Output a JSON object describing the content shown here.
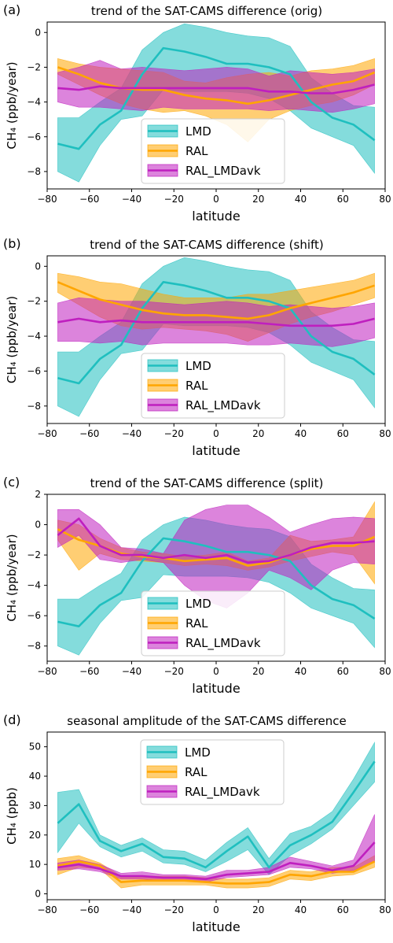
{
  "colors": {
    "LMD": "#1fbfbf",
    "RAL": "#ffa500",
    "RAL_LMDavk": "#bf1fbf"
  },
  "chart_data": [
    {
      "id": "a",
      "panel_label": "(a)",
      "type": "line",
      "title": "trend of the SAT-CAMS difference (orig)",
      "xlabel": "latitude",
      "ylabel": "CH₄ (ppb/year)",
      "xlim": [
        -80,
        80
      ],
      "ylim": [
        -9,
        0.6
      ],
      "xticks": [
        -80,
        -60,
        -40,
        -20,
        0,
        20,
        40,
        60,
        80
      ],
      "yticks": [
        0,
        -2,
        -4,
        -6,
        -8
      ],
      "legend": {
        "position": "bottom-center",
        "entries": [
          "LMD",
          "RAL",
          "RAL_LMDavk"
        ]
      },
      "x": [
        -75,
        -65,
        -55,
        -45,
        -35,
        -25,
        -15,
        -5,
        5,
        15,
        25,
        35,
        45,
        55,
        65,
        75
      ],
      "series": [
        {
          "name": "LMD",
          "values": [
            -6.4,
            -6.7,
            -5.3,
            -4.5,
            -2.4,
            -0.9,
            -1.1,
            -1.4,
            -1.8,
            -1.8,
            -2.0,
            -2.4,
            -4.0,
            -4.9,
            -5.3,
            -6.2
          ],
          "lower": [
            -8.0,
            -8.6,
            -6.5,
            -5.0,
            -4.8,
            -3.3,
            -3.4,
            -3.4,
            -3.4,
            -3.5,
            -3.8,
            -4.5,
            -5.5,
            -6.0,
            -6.5,
            -8.1
          ],
          "upper": [
            -4.9,
            -4.9,
            -4.0,
            -3.2,
            -1.0,
            0.0,
            0.5,
            0.3,
            0.0,
            -0.2,
            -0.3,
            -0.8,
            -2.6,
            -3.5,
            -4.2,
            -4.3
          ]
        },
        {
          "name": "RAL",
          "values": [
            -2.0,
            -2.4,
            -2.9,
            -3.2,
            -3.3,
            -3.3,
            -3.6,
            -3.8,
            -3.9,
            -4.1,
            -3.9,
            -3.6,
            -3.3,
            -3.0,
            -2.8,
            -2.3
          ],
          "lower": [
            -2.4,
            -3.0,
            -3.6,
            -4.1,
            -4.4,
            -4.6,
            -4.5,
            -4.8,
            -5.3,
            -6.3,
            -5.0,
            -4.5,
            -4.2,
            -4.0,
            -3.6,
            -3.0
          ],
          "upper": [
            -1.5,
            -1.8,
            -2.0,
            -2.1,
            -2.2,
            -2.3,
            -2.8,
            -2.9,
            -2.6,
            -2.4,
            -2.3,
            -2.5,
            -2.2,
            -2.1,
            -1.9,
            -1.5
          ]
        },
        {
          "name": "RAL_LMDavk",
          "values": [
            -3.2,
            -3.3,
            -3.1,
            -3.2,
            -3.2,
            -3.2,
            -3.2,
            -3.2,
            -3.2,
            -3.2,
            -3.4,
            -3.4,
            -3.5,
            -3.5,
            -3.3,
            -3.0
          ],
          "lower": [
            -4.0,
            -4.3,
            -4.3,
            -4.4,
            -4.5,
            -4.3,
            -4.4,
            -4.4,
            -4.4,
            -4.4,
            -4.5,
            -4.4,
            -4.5,
            -4.6,
            -4.4,
            -4.1
          ],
          "upper": [
            -2.3,
            -2.0,
            -1.6,
            -2.1,
            -2.0,
            -2.1,
            -2.2,
            -2.1,
            -2.0,
            -2.1,
            -2.5,
            -2.2,
            -2.3,
            -2.4,
            -2.3,
            -2.1
          ]
        }
      ]
    },
    {
      "id": "b",
      "panel_label": "(b)",
      "type": "line",
      "title": "trend of the SAT-CAMS difference (shift)",
      "xlabel": "latitude",
      "ylabel": "CH₄ (ppb/year)",
      "xlim": [
        -80,
        80
      ],
      "ylim": [
        -9,
        0.6
      ],
      "xticks": [
        -80,
        -60,
        -40,
        -20,
        0,
        20,
        40,
        60,
        80
      ],
      "yticks": [
        0,
        -2,
        -4,
        -6,
        -8
      ],
      "legend": {
        "position": "bottom-center",
        "entries": [
          "LMD",
          "RAL",
          "RAL_LMDavk"
        ]
      },
      "x": [
        -75,
        -65,
        -55,
        -45,
        -35,
        -25,
        -15,
        -5,
        5,
        15,
        25,
        35,
        45,
        55,
        65,
        75
      ],
      "series": [
        {
          "name": "LMD",
          "values": [
            -6.4,
            -6.7,
            -5.3,
            -4.5,
            -2.4,
            -0.9,
            -1.1,
            -1.4,
            -1.8,
            -1.8,
            -2.0,
            -2.4,
            -4.0,
            -4.9,
            -5.3,
            -6.2
          ],
          "lower": [
            -8.0,
            -8.6,
            -6.5,
            -5.0,
            -4.8,
            -3.3,
            -3.4,
            -3.4,
            -3.4,
            -3.5,
            -3.8,
            -4.5,
            -5.5,
            -6.0,
            -6.5,
            -8.1
          ],
          "upper": [
            -4.9,
            -4.9,
            -4.0,
            -3.2,
            -1.0,
            0.0,
            0.5,
            0.3,
            0.0,
            -0.2,
            -0.3,
            -0.8,
            -2.6,
            -3.5,
            -4.2,
            -4.3
          ]
        },
        {
          "name": "RAL",
          "values": [
            -0.9,
            -1.4,
            -1.9,
            -2.2,
            -2.5,
            -2.7,
            -2.8,
            -2.8,
            -2.9,
            -3.0,
            -2.8,
            -2.4,
            -2.1,
            -1.8,
            -1.5,
            -1.1
          ],
          "lower": [
            -1.5,
            -2.2,
            -2.9,
            -3.4,
            -3.6,
            -3.5,
            -3.6,
            -3.7,
            -3.9,
            -4.3,
            -3.8,
            -3.3,
            -2.9,
            -2.6,
            -2.2,
            -1.8
          ],
          "upper": [
            -0.4,
            -0.6,
            -0.9,
            -1.0,
            -1.3,
            -1.6,
            -1.8,
            -1.8,
            -1.8,
            -1.6,
            -1.6,
            -1.4,
            -1.2,
            -1.0,
            -0.8,
            -0.4
          ]
        },
        {
          "name": "RAL_LMDavk",
          "values": [
            -3.2,
            -3.0,
            -3.2,
            -3.1,
            -3.2,
            -3.2,
            -3.2,
            -3.2,
            -3.2,
            -3.2,
            -3.3,
            -3.4,
            -3.4,
            -3.4,
            -3.3,
            -3.0
          ],
          "lower": [
            -4.3,
            -4.3,
            -4.4,
            -4.3,
            -4.5,
            -4.4,
            -4.4,
            -4.4,
            -4.4,
            -4.5,
            -4.5,
            -4.4,
            -4.5,
            -4.6,
            -4.4,
            -4.1
          ],
          "upper": [
            -2.1,
            -1.8,
            -1.9,
            -2.0,
            -2.0,
            -2.1,
            -2.2,
            -2.1,
            -2.0,
            -2.1,
            -2.3,
            -2.2,
            -2.3,
            -2.4,
            -2.3,
            -2.1
          ]
        }
      ]
    },
    {
      "id": "c",
      "panel_label": "(c)",
      "type": "line",
      "title": "trend of the SAT-CAMS difference (split)",
      "xlabel": "latitude",
      "ylabel": "CH₄ (ppb/year)",
      "xlim": [
        -80,
        80
      ],
      "ylim": [
        -9,
        2
      ],
      "xticks": [
        -80,
        -60,
        -40,
        -20,
        0,
        20,
        40,
        60,
        80
      ],
      "yticks": [
        2,
        0,
        -2,
        -4,
        -6,
        -8
      ],
      "legend": {
        "position": "bottom-center",
        "entries": [
          "LMD",
          "RAL",
          "RAL_LMDavk"
        ]
      },
      "x": [
        -75,
        -65,
        -55,
        -45,
        -35,
        -25,
        -15,
        -5,
        5,
        15,
        25,
        35,
        45,
        55,
        65,
        75
      ],
      "series": [
        {
          "name": "LMD",
          "values": [
            -6.4,
            -6.7,
            -5.3,
            -4.5,
            -2.4,
            -0.9,
            -1.1,
            -1.4,
            -1.8,
            -1.8,
            -2.0,
            -2.4,
            -4.0,
            -4.9,
            -5.3,
            -6.2
          ],
          "lower": [
            -8.0,
            -8.6,
            -6.5,
            -5.0,
            -4.8,
            -3.3,
            -3.4,
            -3.4,
            -3.4,
            -3.5,
            -3.8,
            -4.5,
            -5.5,
            -6.0,
            -6.5,
            -8.1
          ],
          "upper": [
            -4.9,
            -4.9,
            -4.0,
            -3.2,
            -1.0,
            0.0,
            0.5,
            0.3,
            0.0,
            -0.2,
            -0.3,
            -0.8,
            -2.6,
            -3.5,
            -4.2,
            -4.3
          ]
        },
        {
          "name": "RAL",
          "values": [
            -0.3,
            -1.0,
            -1.4,
            -1.9,
            -2.1,
            -2.2,
            -2.4,
            -2.3,
            -2.2,
            -2.7,
            -2.5,
            -2.0,
            -1.6,
            -1.4,
            -1.4,
            -0.8
          ],
          "lower": [
            -1.0,
            -3.0,
            -1.9,
            -2.3,
            -2.4,
            -2.5,
            -2.7,
            -2.6,
            -2.7,
            -3.0,
            -2.8,
            -2.4,
            -2.1,
            -1.8,
            -2.0,
            -3.9
          ],
          "upper": [
            0.3,
            0.0,
            -0.9,
            -1.5,
            -1.8,
            -1.9,
            -2.1,
            -2.0,
            -1.8,
            -2.4,
            -2.2,
            -0.7,
            -1.1,
            -1.0,
            -0.8,
            1.5
          ]
        },
        {
          "name": "RAL_LMDavk",
          "values": [
            -0.7,
            0.4,
            -1.4,
            -2.0,
            -2.0,
            -2.2,
            -2.0,
            -2.2,
            -2.0,
            -2.5,
            -2.4,
            -2.0,
            -1.5,
            -1.2,
            -1.2,
            -1.1
          ],
          "lower": [
            -1.5,
            -0.7,
            -2.3,
            -2.5,
            -2.3,
            -2.5,
            -4.0,
            -5.0,
            -5.5,
            -4.5,
            -3.0,
            -3.5,
            -4.3,
            -3.0,
            -2.5,
            -2.6
          ],
          "upper": [
            1.0,
            1.0,
            0.0,
            -1.5,
            -1.6,
            -1.9,
            0.3,
            1.0,
            1.3,
            1.3,
            0.5,
            -0.5,
            0.0,
            0.4,
            0.5,
            0.4
          ]
        }
      ]
    },
    {
      "id": "d",
      "panel_label": "(d)",
      "type": "line",
      "title": "seasonal amplitude of the SAT-CAMS difference",
      "xlabel": "latitude",
      "ylabel": "CH₄ (ppb)",
      "xlim": [
        -80,
        80
      ],
      "ylim": [
        -2,
        55
      ],
      "xticks": [
        -80,
        -60,
        -40,
        -20,
        0,
        20,
        40,
        60,
        80
      ],
      "yticks": [
        0,
        10,
        20,
        30,
        40,
        50
      ],
      "legend": {
        "position": "top-center",
        "entries": [
          "LMD",
          "RAL",
          "RAL_LMDavk"
        ]
      },
      "x": [
        -75,
        -65,
        -55,
        -45,
        -35,
        -25,
        -15,
        -5,
        5,
        15,
        25,
        35,
        45,
        55,
        65,
        75
      ],
      "series": [
        {
          "name": "LMD",
          "values": [
            24,
            30.5,
            18,
            14.5,
            17,
            12.5,
            12,
            9,
            14.5,
            19.5,
            9,
            16.5,
            20,
            24.5,
            34.5,
            45
          ],
          "lower": [
            14,
            24,
            16,
            12.5,
            14.5,
            10.5,
            10,
            7.5,
            11,
            15,
            6.5,
            13,
            17,
            22,
            30,
            38
          ],
          "upper": [
            34.5,
            35.5,
            20,
            16.5,
            19,
            15,
            14.5,
            11.5,
            17.5,
            22.5,
            12,
            20.5,
            23,
            28,
            39,
            51.5
          ]
        },
        {
          "name": "RAL",
          "values": [
            9.5,
            11,
            9.5,
            4,
            4.5,
            4.5,
            4.5,
            4,
            3.5,
            3.5,
            4,
            6.5,
            6,
            7.5,
            7.5,
            11
          ],
          "lower": [
            6.5,
            9,
            8.5,
            2,
            3,
            3,
            3,
            3,
            2,
            2,
            2.5,
            5,
            4.5,
            6,
            6.5,
            9
          ],
          "upper": [
            12,
            13,
            10.5,
            6,
            6,
            6,
            6,
            5.5,
            5,
            5,
            5.5,
            8,
            7.5,
            9,
            9,
            13
          ]
        },
        {
          "name": "RAL_LMDavk",
          "values": [
            9,
            10,
            8.5,
            6,
            6,
            5.5,
            5.5,
            5,
            6.5,
            7,
            7.5,
            10.5,
            9.5,
            8,
            9.5,
            17.5
          ],
          "lower": [
            8,
            8.5,
            7.5,
            5,
            5,
            4.5,
            4.5,
            4,
            5.5,
            6,
            6.5,
            9,
            8.5,
            7,
            8,
            11
          ],
          "upper": [
            10.5,
            11.5,
            10,
            7,
            7.5,
            6.5,
            6.5,
            6,
            8,
            8,
            9,
            12.5,
            11,
            9.5,
            11.5,
            27
          ]
        }
      ]
    }
  ]
}
